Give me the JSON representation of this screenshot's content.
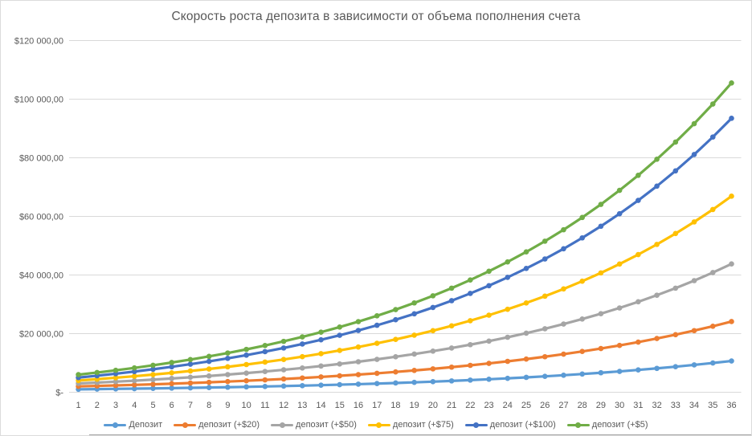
{
  "colors": {
    "text": "#595959",
    "gridline": "#d9d9d9",
    "axis_line": "#d9d9d9",
    "window_edge": "#a6a6a6"
  },
  "chart_data": {
    "type": "line",
    "title": "Скорость роста депозита в зависимости от объема пополнения счета",
    "xlabel": "",
    "ylabel": "",
    "ylim": [
      0,
      120000
    ],
    "grid": true,
    "legend_position": "bottom",
    "categories": [
      "1",
      "2",
      "3",
      "4",
      "5",
      "6",
      "7",
      "8",
      "9",
      "10",
      "11",
      "12",
      "13",
      "14",
      "15",
      "16",
      "17",
      "18",
      "19",
      "20",
      "21",
      "22",
      "23",
      "24",
      "25",
      "26",
      "27",
      "28",
      "29",
      "30",
      "31",
      "32",
      "33",
      "34",
      "35",
      "36"
    ],
    "y_ticks": [
      {
        "value": 0,
        "label": "$-"
      },
      {
        "value": 20000,
        "label": "$20 000,00"
      },
      {
        "value": 40000,
        "label": "$40 000,00"
      },
      {
        "value": 60000,
        "label": "$60 000,00"
      },
      {
        "value": 80000,
        "label": "$80 000,00"
      },
      {
        "value": 100000,
        "label": "$100 000,00"
      },
      {
        "value": 120000,
        "label": "$120 000,00"
      }
    ],
    "series": [
      {
        "name": "Депозит",
        "color": "#5B9BD5",
        "values": [
          1000,
          1070,
          1145,
          1225,
          1311,
          1403,
          1501,
          1606,
          1718,
          1838,
          1967,
          2105,
          2252,
          2410,
          2579,
          2759,
          2952,
          3159,
          3380,
          3617,
          3870,
          4141,
          4430,
          4741,
          5072,
          5427,
          5807,
          6214,
          6649,
          7114,
          7612,
          8145,
          8715,
          9325,
          9978,
          10677
        ]
      },
      {
        "name": "депозит (+$20)",
        "color": "#ED7D31",
        "values": [
          2000,
          2160,
          2331,
          2514,
          2710,
          2920,
          3145,
          3385,
          3642,
          3917,
          4211,
          4525,
          4862,
          5222,
          5608,
          6021,
          6462,
          6934,
          7440,
          7981,
          8559,
          9178,
          9841,
          10550,
          11308,
          12120,
          12988,
          13917,
          14912,
          15975,
          17114,
          18332,
          19635,
          21029,
          22521,
          24118
        ]
      },
      {
        "name": "депозит (+$50)",
        "color": "#A5A5A5",
        "values": [
          3000,
          3295,
          3611,
          3948,
          4310,
          4697,
          5110,
          5553,
          6027,
          6534,
          7076,
          7656,
          8277,
          8942,
          9652,
          10413,
          11227,
          12098,
          13030,
          14027,
          15094,
          16235,
          17457,
          18764,
          20162,
          21659,
          23260,
          24973,
          26806,
          28767,
          30866,
          33112,
          35514,
          38085,
          40836,
          43780
        ]
      },
      {
        "name": "депозит (+$75)",
        "color": "#FFC000",
        "values": [
          4000,
          4455,
          4942,
          5463,
          6020,
          6617,
          7255,
          7938,
          8668,
          9450,
          10287,
          11182,
          12139,
          13164,
          14260,
          15434,
          16689,
          18032,
          19470,
          21007,
          22653,
          24414,
          26298,
          28313,
          30470,
          32778,
          35248,
          37890,
          40718,
          43743,
          46980,
          50443,
          54150,
          58115,
          62358,
          66898
        ]
      },
      {
        "name": "депозит (+$100)",
        "color": "#4472C4",
        "values": [
          5000,
          5640,
          6325,
          7058,
          7842,
          8680,
          9578,
          10539,
          11566,
          12666,
          13843,
          15102,
          16449,
          17890,
          19432,
          21083,
          22848,
          24738,
          26759,
          28923,
          31237,
          33714,
          36364,
          39199,
          42233,
          45479,
          48953,
          52670,
          56647,
          60902,
          65455,
          70327,
          75540,
          81117,
          87086,
          93472
        ]
      },
      {
        "name": "депозит (+$5)",
        "color": "#70AD47",
        "values": [
          6000,
          6720,
          7490,
          8315,
          9197,
          10141,
          11150,
          12231,
          13387,
          14624,
          15948,
          17364,
          18880,
          20501,
          22236,
          24093,
          26079,
          28205,
          30479,
          32913,
          35517,
          38303,
          41284,
          44474,
          47887,
          51539,
          55447,
          59628,
          64102,
          68889,
          74012,
          79494,
          85359,
          91635,
          98351,
          105531
        ]
      }
    ]
  }
}
